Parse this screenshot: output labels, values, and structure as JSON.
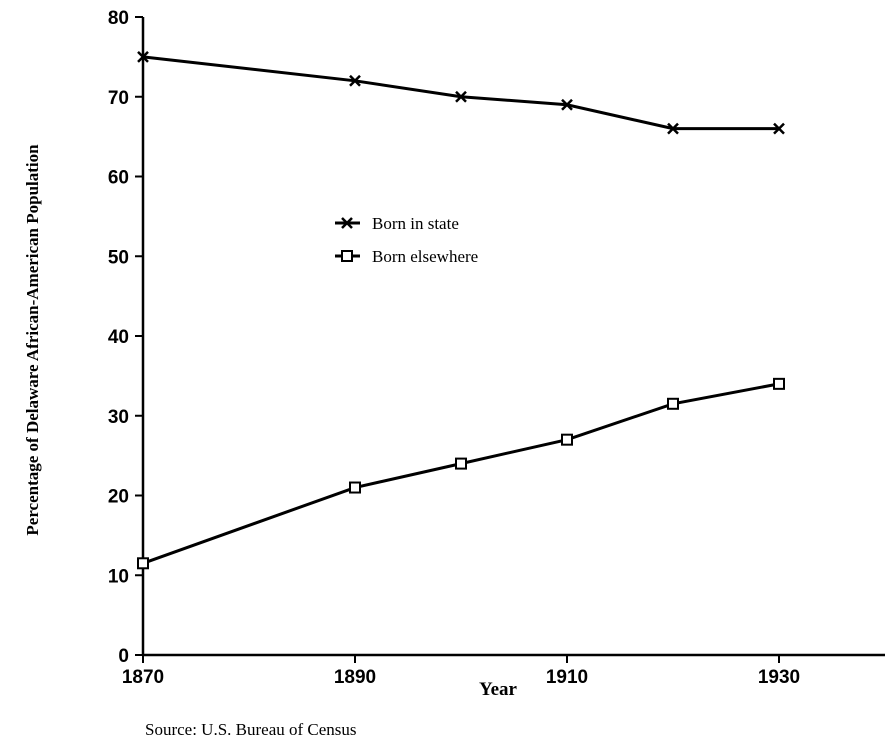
{
  "chart_data": {
    "type": "line",
    "x": [
      1870,
      1890,
      1900,
      1910,
      1920,
      1930
    ],
    "series": [
      {
        "name": "Born in state",
        "color": "#000000",
        "marker": "x",
        "values": [
          75,
          72,
          70,
          69,
          66,
          66
        ]
      },
      {
        "name": "Born elsewhere",
        "color": "#000000",
        "marker": "square",
        "values": [
          11.5,
          21,
          24,
          27,
          31.5,
          34
        ]
      }
    ],
    "xlabel": "Year",
    "ylabel": "Percentage of Delaware African-American Population",
    "source": "Source: U.S. Bureau of Census",
    "xlim": [
      1870,
      1940
    ],
    "xticks": [
      1870,
      1890,
      1910,
      1930
    ],
    "ylim": [
      0,
      80
    ],
    "yticks": [
      0,
      10,
      20,
      30,
      40,
      50,
      60,
      70,
      80
    ],
    "grid": false
  }
}
